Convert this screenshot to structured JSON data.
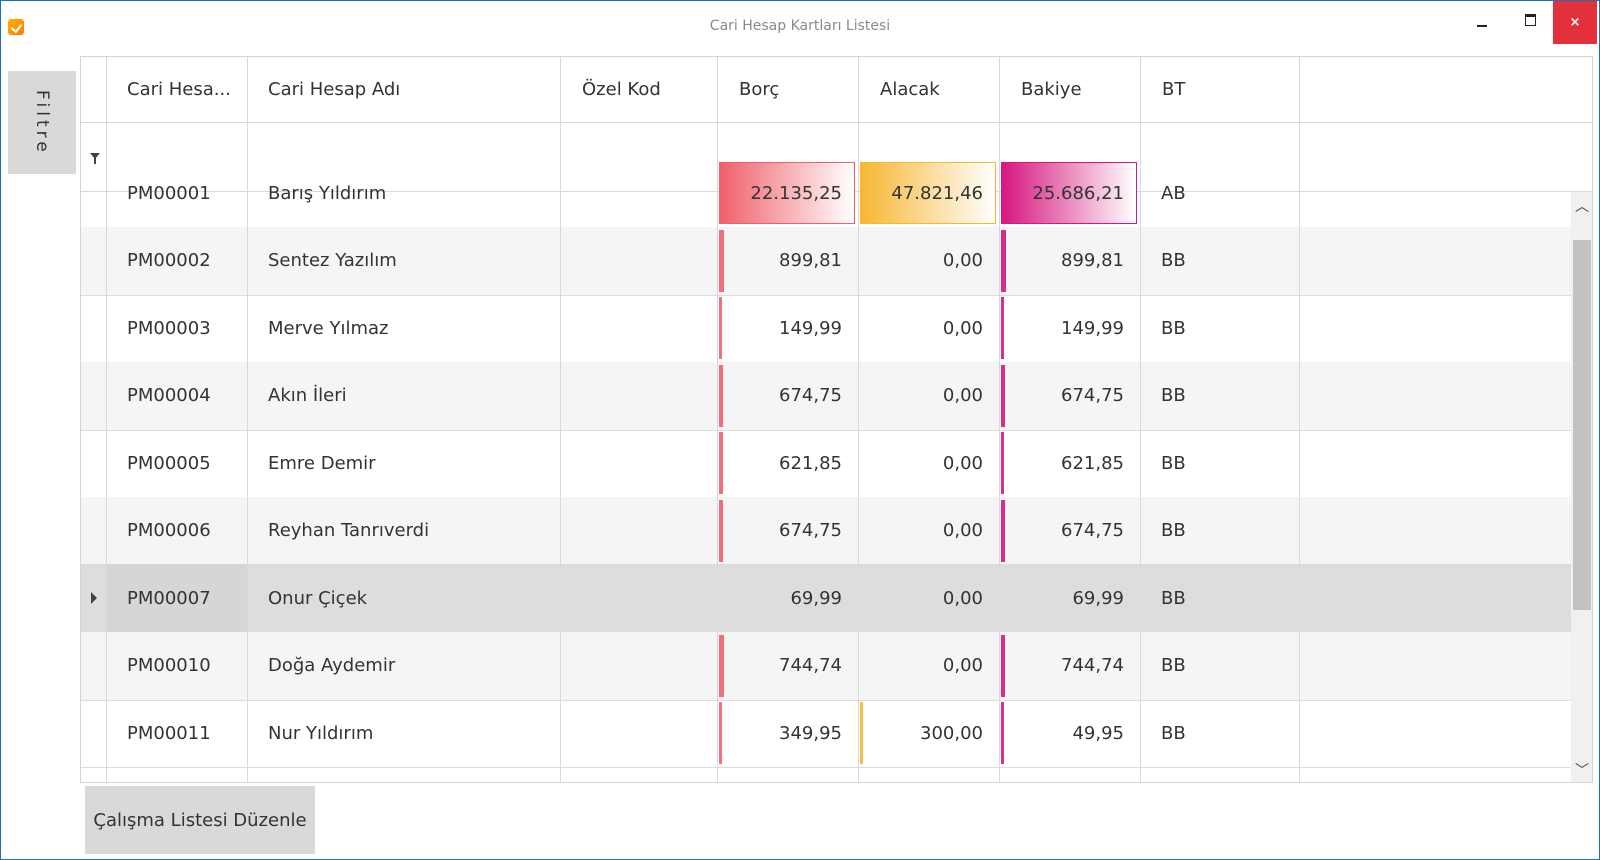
{
  "window": {
    "title": "Cari Hesap Kartları Listesi",
    "close_glyph": "×"
  },
  "filter_tab": {
    "label": "Filtre"
  },
  "columns": [
    {
      "label": "Cari Hesa..."
    },
    {
      "label": "Cari Hesap Adı"
    },
    {
      "label": "Özel Kod"
    },
    {
      "label": "Borç"
    },
    {
      "label": "Alacak"
    },
    {
      "label": "Bakiye"
    },
    {
      "label": "BT"
    }
  ],
  "rows": [
    {
      "code": "PM00001",
      "name": "Barış Yıldırım",
      "ozel": "",
      "borc": "22.135,25",
      "alacak": "47.821,46",
      "bakiye": "25.686,21",
      "bt": "AB",
      "borc_fill": 1.0,
      "alacak_fill": 1.0,
      "bakiye_fill": 1.0
    },
    {
      "code": "PM00002",
      "name": "Sentez Yazılım",
      "ozel": "",
      "borc": "899,81",
      "alacak": "0,00",
      "bakiye": "899,81",
      "bt": "BB",
      "borc_fill": 0.04,
      "alacak_fill": 0,
      "bakiye_fill": 0.035
    },
    {
      "code": "PM00003",
      "name": "Merve Yılmaz",
      "ozel": "",
      "borc": "149,99",
      "alacak": "0,00",
      "bakiye": "149,99",
      "bt": "BB",
      "borc_fill": 0.007,
      "alacak_fill": 0,
      "bakiye_fill": 0.006
    },
    {
      "code": "PM00004",
      "name": "Akın İleri",
      "ozel": "",
      "borc": "674,75",
      "alacak": "0,00",
      "bakiye": "674,75",
      "bt": "BB",
      "borc_fill": 0.03,
      "alacak_fill": 0,
      "bakiye_fill": 0.026
    },
    {
      "code": "PM00005",
      "name": "Emre Demir",
      "ozel": "",
      "borc": "621,85",
      "alacak": "0,00",
      "bakiye": "621,85",
      "bt": "BB",
      "borc_fill": 0.028,
      "alacak_fill": 0,
      "bakiye_fill": 0.024
    },
    {
      "code": "PM00006",
      "name": "Reyhan Tanrıverdi",
      "ozel": "",
      "borc": "674,75",
      "alacak": "0,00",
      "bakiye": "674,75",
      "bt": "BB",
      "borc_fill": 0.03,
      "alacak_fill": 0,
      "bakiye_fill": 0.026
    },
    {
      "code": "PM00007",
      "name": "Onur Çiçek",
      "ozel": "",
      "borc": "69,99",
      "alacak": "0,00",
      "bakiye": "69,99",
      "bt": "BB",
      "borc_fill": 0.003,
      "alacak_fill": 0,
      "bakiye_fill": 0.003
    },
    {
      "code": "PM00010",
      "name": "Doğa Aydemir",
      "ozel": "",
      "borc": "744,74",
      "alacak": "0,00",
      "bakiye": "744,74",
      "bt": "BB",
      "borc_fill": 0.034,
      "alacak_fill": 0,
      "bakiye_fill": 0.029
    },
    {
      "code": "PM00011",
      "name": "Nur Yıldırım",
      "ozel": "",
      "borc": "349,95",
      "alacak": "300,00",
      "bakiye": "49,95",
      "bt": "BB",
      "borc_fill": 0.016,
      "alacak_fill": 0.006,
      "bakiye_fill": 0.002
    }
  ],
  "selected_row_index": 6,
  "bottom_button": {
    "label": "Çalışma Listesi Düzenle"
  },
  "colors": {
    "borc": "#f0606a",
    "alacak": "#f7b733",
    "bakiye": "#d6177f",
    "close_button": "#e3313b",
    "selection": "#dddddd"
  }
}
